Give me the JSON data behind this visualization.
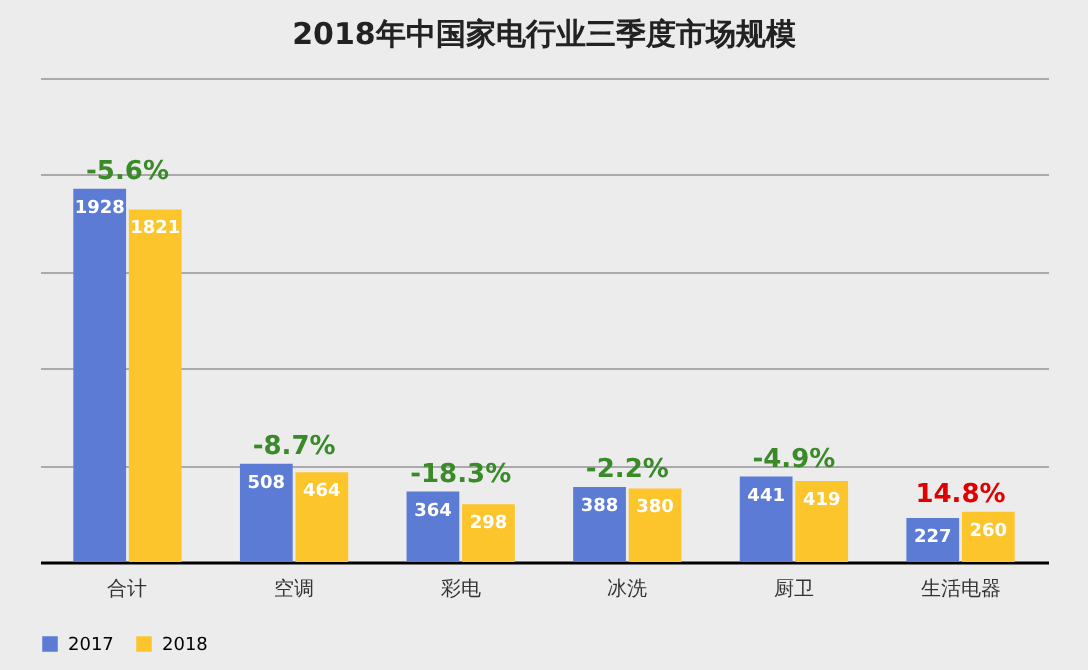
{
  "chart_data": {
    "type": "bar",
    "title": "2018年中国家电行业三季度市场规模",
    "categories": [
      "合计",
      "空调",
      "彩电",
      "冰洗",
      "厨卫",
      "生活电器"
    ],
    "series": [
      {
        "name": "2017",
        "color": "#5b7bd5",
        "values": [
          1928,
          508,
          364,
          388,
          441,
          227
        ]
      },
      {
        "name": "2018",
        "color": "#fcc52c",
        "values": [
          1821,
          464,
          298,
          380,
          419,
          260
        ]
      }
    ],
    "ylim": [
      0,
      2500
    ],
    "yticks": [
      {
        "value": 0,
        "label": null
      },
      {
        "value": 500,
        "label": null
      },
      {
        "value": 1000,
        "label": null
      },
      {
        "value": 1500,
        "label": null
      },
      {
        "value": 2000,
        "label": null
      },
      {
        "value": 2500,
        "label": null
      }
    ],
    "tick_labels": "x",
    "grid": "y",
    "legend": "bottom",
    "data_labels": true,
    "annotations": [
      {
        "text": "-5.6%",
        "x": "合计",
        "y": 1928
      },
      {
        "text": "-8.7%",
        "x": "空调",
        "y": 508
      },
      {
        "text": "-18.3%",
        "x": "彩电",
        "y": 364
      },
      {
        "text": "-2.2%",
        "x": "冰洗",
        "y": 388
      },
      {
        "text": "-4.9%",
        "x": "厨卫",
        "y": 441
      },
      {
        "text": "14.8%",
        "x": "生活电器",
        "y": 260
      }
    ]
  }
}
